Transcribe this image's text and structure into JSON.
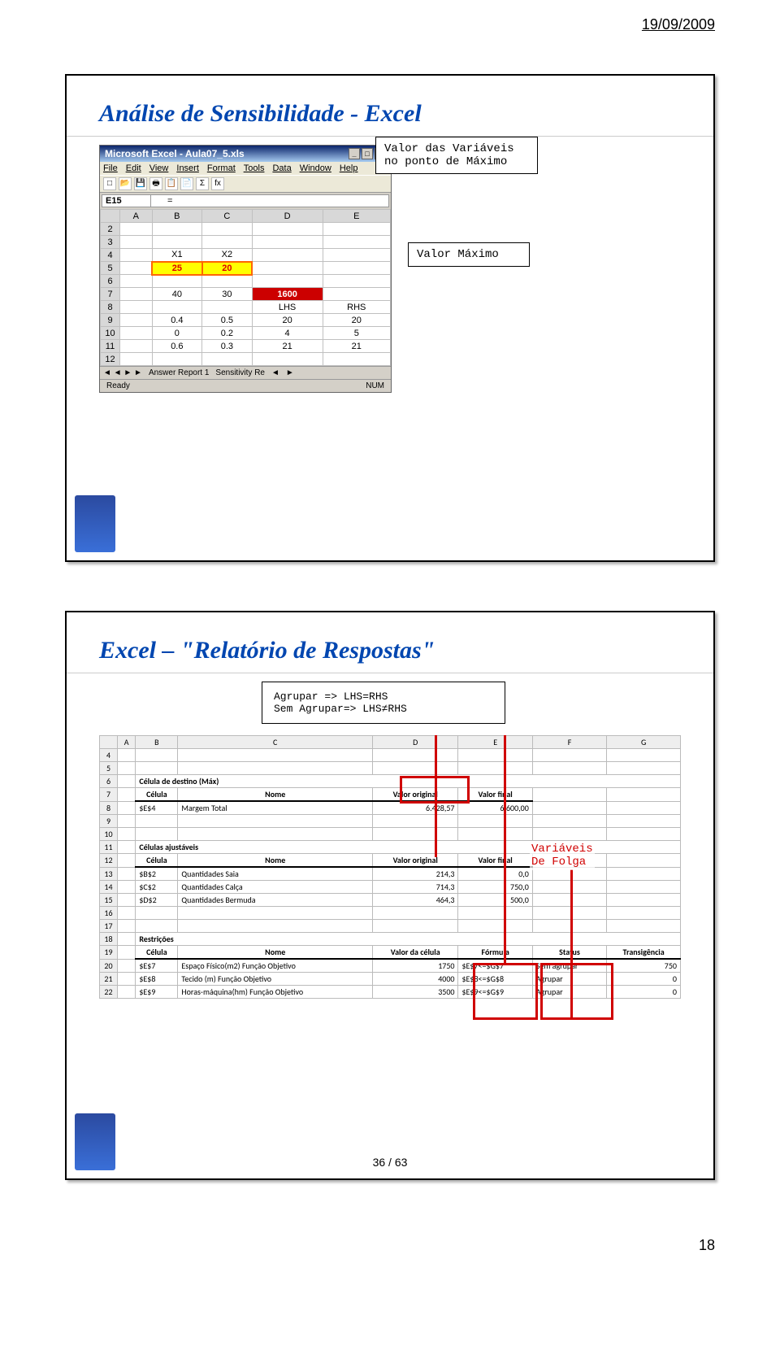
{
  "page_date": "19/09/2009",
  "footer_page": "18",
  "slide1": {
    "title": "Análise de Sensibilidade - Excel",
    "callout_vars": "Valor das Variáveis\nno ponto de Máximo",
    "callout_max": "Valor Máximo",
    "excel": {
      "title": "Microsoft Excel - Aula07_5.xls",
      "menus": [
        "File",
        "Edit",
        "View",
        "Insert",
        "Format",
        "Tools",
        "Data",
        "Window",
        "Help"
      ],
      "cell_ref": "E15",
      "formula": "=",
      "cols": [
        "A",
        "B",
        "C",
        "D",
        "E"
      ],
      "rows": [
        {
          "n": "2",
          "cells": [
            "",
            "",
            "",
            "",
            ""
          ]
        },
        {
          "n": "3",
          "cells": [
            "",
            "",
            "",
            "",
            ""
          ]
        },
        {
          "n": "4",
          "cells": [
            "",
            "X1",
            "X2",
            "",
            ""
          ]
        },
        {
          "n": "5",
          "cells": [
            "",
            "25",
            "20",
            "",
            ""
          ],
          "hl": [
            1,
            2
          ]
        },
        {
          "n": "6",
          "cells": [
            "",
            "",
            "",
            "",
            ""
          ]
        },
        {
          "n": "7",
          "cells": [
            "",
            "40",
            "30",
            "1600",
            ""
          ],
          "red": [
            3
          ]
        },
        {
          "n": "8",
          "cells": [
            "",
            "",
            "",
            "LHS",
            "RHS"
          ]
        },
        {
          "n": "9",
          "cells": [
            "",
            "0.4",
            "0.5",
            "20",
            "20"
          ]
        },
        {
          "n": "10",
          "cells": [
            "",
            "0",
            "0.2",
            "4",
            "5"
          ]
        },
        {
          "n": "11",
          "cells": [
            "",
            "0.6",
            "0.3",
            "21",
            "21"
          ]
        },
        {
          "n": "12",
          "cells": [
            "",
            "",
            "",
            "",
            ""
          ]
        }
      ],
      "tabs": [
        "Answer Report 1",
        "Sensitivity Re"
      ],
      "status_left": "Ready",
      "status_right": "NUM"
    }
  },
  "slide2": {
    "title": "Excel – \"Relatório de Respostas\"",
    "agrupar_box_line1": "Agrupar => LHS=RHS",
    "agrupar_box_line2": "Sem Agrupar=> LHS≠RHS",
    "vars_label_line1": "Variáveis",
    "vars_label_line2": "De Folga",
    "cols": [
      "A",
      "B",
      "C",
      "D",
      "E",
      "F",
      "G"
    ],
    "rows": [
      {
        "n": "4",
        "cells": [
          "",
          "",
          "",
          "",
          "",
          "",
          ""
        ]
      },
      {
        "n": "5",
        "cells": [
          "",
          "",
          "",
          "",
          "",
          "",
          ""
        ]
      },
      {
        "n": "6",
        "cells": [
          "",
          "Célula de destino (Máx)",
          "",
          "",
          "",
          "",
          ""
        ],
        "span": [
          1,
          6
        ]
      },
      {
        "n": "7",
        "cells": [
          "",
          "Célula",
          "Nome",
          "Valor original",
          "Valor final",
          "",
          ""
        ],
        "ul": [
          1,
          2,
          3,
          4
        ]
      },
      {
        "n": "8",
        "cells": [
          "",
          "$E$4",
          "Margem Total",
          "6.428,57",
          "6.600,00",
          "",
          ""
        ]
      },
      {
        "n": "9",
        "cells": [
          "",
          "",
          "",
          "",
          "",
          "",
          ""
        ]
      },
      {
        "n": "10",
        "cells": [
          "",
          "",
          "",
          "",
          "",
          "",
          ""
        ]
      },
      {
        "n": "11",
        "cells": [
          "",
          "Células ajustáveis",
          "",
          "",
          "",
          "",
          ""
        ],
        "span": [
          1,
          6
        ]
      },
      {
        "n": "12",
        "cells": [
          "",
          "Célula",
          "Nome",
          "Valor original",
          "Valor final",
          "",
          ""
        ],
        "ul": [
          1,
          2,
          3,
          4
        ]
      },
      {
        "n": "13",
        "cells": [
          "",
          "$B$2",
          "Quantidades Saia",
          "214,3",
          "0,0",
          "",
          ""
        ]
      },
      {
        "n": "14",
        "cells": [
          "",
          "$C$2",
          "Quantidades Calça",
          "714,3",
          "750,0",
          "",
          ""
        ]
      },
      {
        "n": "15",
        "cells": [
          "",
          "$D$2",
          "Quantidades Bermuda",
          "464,3",
          "500,0",
          "",
          ""
        ]
      },
      {
        "n": "16",
        "cells": [
          "",
          "",
          "",
          "",
          "",
          "",
          ""
        ]
      },
      {
        "n": "17",
        "cells": [
          "",
          "",
          "",
          "",
          "",
          "",
          ""
        ]
      },
      {
        "n": "18",
        "cells": [
          "",
          "Restrições",
          "",
          "",
          "",
          "",
          ""
        ],
        "span": [
          1,
          6
        ]
      },
      {
        "n": "19",
        "cells": [
          "",
          "Célula",
          "Nome",
          "Valor da célula",
          "Fórmula",
          "Status",
          "Transigência"
        ],
        "ul": [
          1,
          2,
          3,
          4,
          5,
          6
        ]
      },
      {
        "n": "20",
        "cells": [
          "",
          "$E$7",
          "Espaço Físico(m2) Função Objetivo",
          "1750",
          "$E$7<=$G$7",
          "Sem agrupar",
          "750"
        ]
      },
      {
        "n": "21",
        "cells": [
          "",
          "$E$8",
          "Tecido (m) Função Objetivo",
          "4000",
          "$E$8<=$G$8",
          "Agrupar",
          "0"
        ]
      },
      {
        "n": "22",
        "cells": [
          "",
          "$E$9",
          "Horas-máquina(hm) Função Objetivo",
          "3500",
          "$E$9<=$G$9",
          "Agrupar",
          "0"
        ]
      }
    ],
    "page_num": "36 / 63"
  }
}
